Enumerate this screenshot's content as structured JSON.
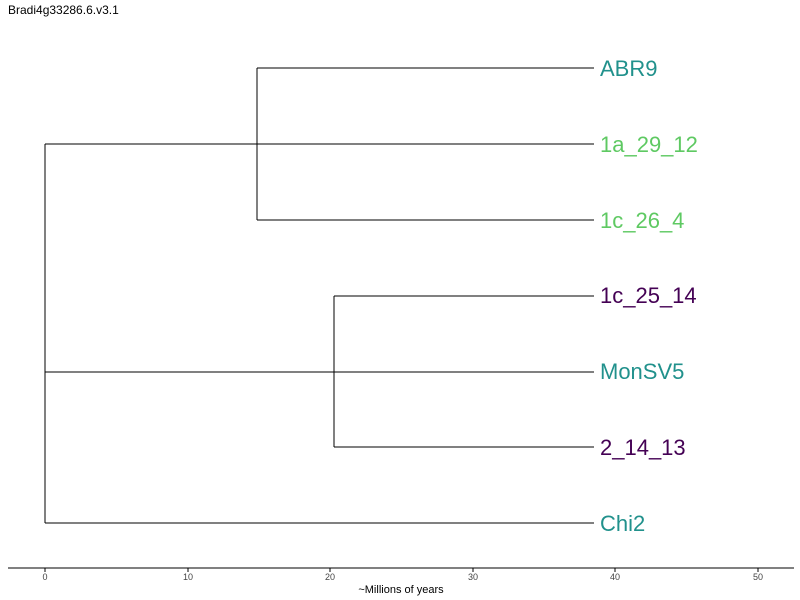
{
  "title": "Bradi4g33286.6.v3.1",
  "colors": {
    "teal": "#21918c",
    "green": "#5ec962",
    "purple": "#440154",
    "branch": "#000000"
  },
  "chart_data": {
    "type": "dendrogram",
    "xlabel": "~Millions of years",
    "xticks": [
      "0",
      "10",
      "20",
      "30",
      "40",
      "50"
    ],
    "tips": [
      {
        "label": "ABR9",
        "color": "#21918c"
      },
      {
        "label": "1a_29_12",
        "color": "#5ec962"
      },
      {
        "label": "1c_26_4",
        "color": "#5ec962"
      },
      {
        "label": "1c_25_14",
        "color": "#440154"
      },
      {
        "label": "MonSV5",
        "color": "#21918c"
      },
      {
        "label": "2_14_13",
        "color": "#440154"
      },
      {
        "label": "Chi2",
        "color": "#21918c"
      }
    ],
    "nodes": [
      {
        "id": "A",
        "height": 15,
        "children": [
          "ABR9",
          "1c_26_4"
        ]
      },
      {
        "id": "B",
        "height": 20.3,
        "children": [
          "1c_25_14",
          "2_14_13"
        ]
      },
      {
        "id": "C",
        "height": 0,
        "children": [
          "1a_29_12",
          "MonSV5",
          "Chi2"
        ]
      }
    ]
  }
}
